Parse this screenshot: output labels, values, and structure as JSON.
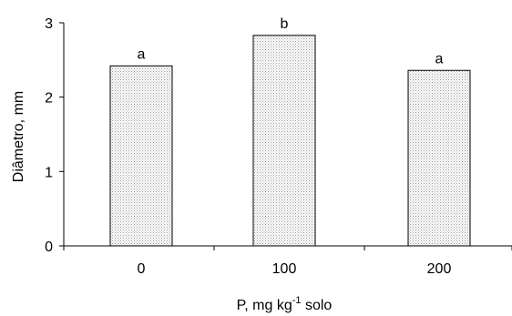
{
  "chart_data": {
    "type": "bar",
    "categories": [
      "0",
      "100",
      "200"
    ],
    "values": [
      2.42,
      2.83,
      2.36
    ],
    "bar_labels": [
      "a",
      "b",
      "a"
    ],
    "xlabel": "P, mg kg",
    "xlabel_sup": "-1",
    "xlabel_suffix": " solo",
    "ylabel": "Diâmetro, mm",
    "ylim": [
      0,
      3
    ],
    "yticks": [
      "0",
      "1",
      "2",
      "3"
    ],
    "legend": "none",
    "grid": false,
    "bar_fill": "stippled grey"
  }
}
